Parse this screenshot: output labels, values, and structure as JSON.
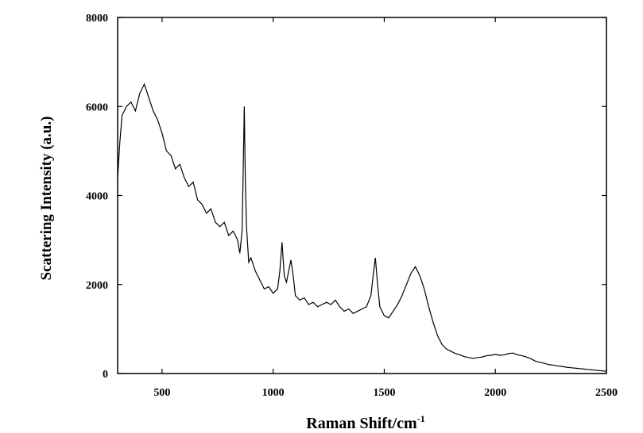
{
  "chart_data": {
    "type": "line",
    "x_label": "Raman Shift/cm",
    "x_label_superscript": "-1",
    "y_label": "Scattering Intensity (a.u.)",
    "x": [
      300,
      310,
      320,
      340,
      360,
      380,
      400,
      420,
      440,
      460,
      480,
      500,
      520,
      540,
      560,
      580,
      600,
      620,
      640,
      660,
      680,
      700,
      720,
      740,
      760,
      780,
      800,
      820,
      840,
      850,
      860,
      865,
      870,
      875,
      880,
      890,
      900,
      920,
      940,
      960,
      980,
      1000,
      1020,
      1030,
      1040,
      1050,
      1060,
      1070,
      1080,
      1090,
      1100,
      1120,
      1140,
      1160,
      1180,
      1200,
      1220,
      1240,
      1260,
      1280,
      1300,
      1320,
      1340,
      1360,
      1380,
      1400,
      1420,
      1440,
      1450,
      1460,
      1470,
      1480,
      1500,
      1520,
      1540,
      1560,
      1580,
      1600,
      1620,
      1640,
      1660,
      1680,
      1700,
      1720,
      1740,
      1760,
      1780,
      1800,
      1820,
      1840,
      1860,
      1880,
      1900,
      1920,
      1940,
      1960,
      1980,
      2000,
      2020,
      2040,
      2060,
      2080,
      2100,
      2120,
      2140,
      2160,
      2180,
      2200,
      2220,
      2240,
      2260,
      2280,
      2300,
      2320,
      2340,
      2360,
      2380,
      2400,
      2420,
      2440,
      2460,
      2480,
      2500
    ],
    "series": [
      {
        "color": "#000000",
        "values": [
          4400,
          5200,
          5800,
          6000,
          6100,
          5900,
          6300,
          6500,
          6200,
          5900,
          5700,
          5400,
          5000,
          4900,
          4600,
          4700,
          4400,
          4200,
          4300,
          3900,
          3800,
          3600,
          3700,
          3400,
          3300,
          3400,
          3100,
          3200,
          3000,
          2700,
          3200,
          4500,
          6000,
          4300,
          3300,
          2500,
          2600,
          2300,
          2100,
          1900,
          1950,
          1800,
          1900,
          2300,
          2950,
          2200,
          2050,
          2300,
          2550,
          2200,
          1750,
          1650,
          1700,
          1550,
          1600,
          1500,
          1550,
          1600,
          1550,
          1650,
          1500,
          1400,
          1450,
          1350,
          1400,
          1450,
          1500,
          1750,
          2200,
          2600,
          2000,
          1500,
          1300,
          1250,
          1400,
          1550,
          1750,
          2000,
          2250,
          2400,
          2200,
          1900,
          1500,
          1150,
          850,
          650,
          550,
          500,
          450,
          420,
          380,
          360,
          340,
          360,
          370,
          400,
          410,
          430,
          410,
          420,
          450,
          460,
          420,
          400,
          370,
          330,
          280,
          250,
          230,
          200,
          190,
          170,
          160,
          140,
          130,
          120,
          110,
          100,
          90,
          80,
          70,
          60,
          50
        ]
      }
    ],
    "xlim": [
      300,
      2500
    ],
    "xticks": [
      500,
      1000,
      1500,
      2000,
      2500
    ],
    "ylim": [
      0,
      8000
    ],
    "yticks": [
      0,
      2000,
      4000,
      6000,
      8000
    ]
  }
}
